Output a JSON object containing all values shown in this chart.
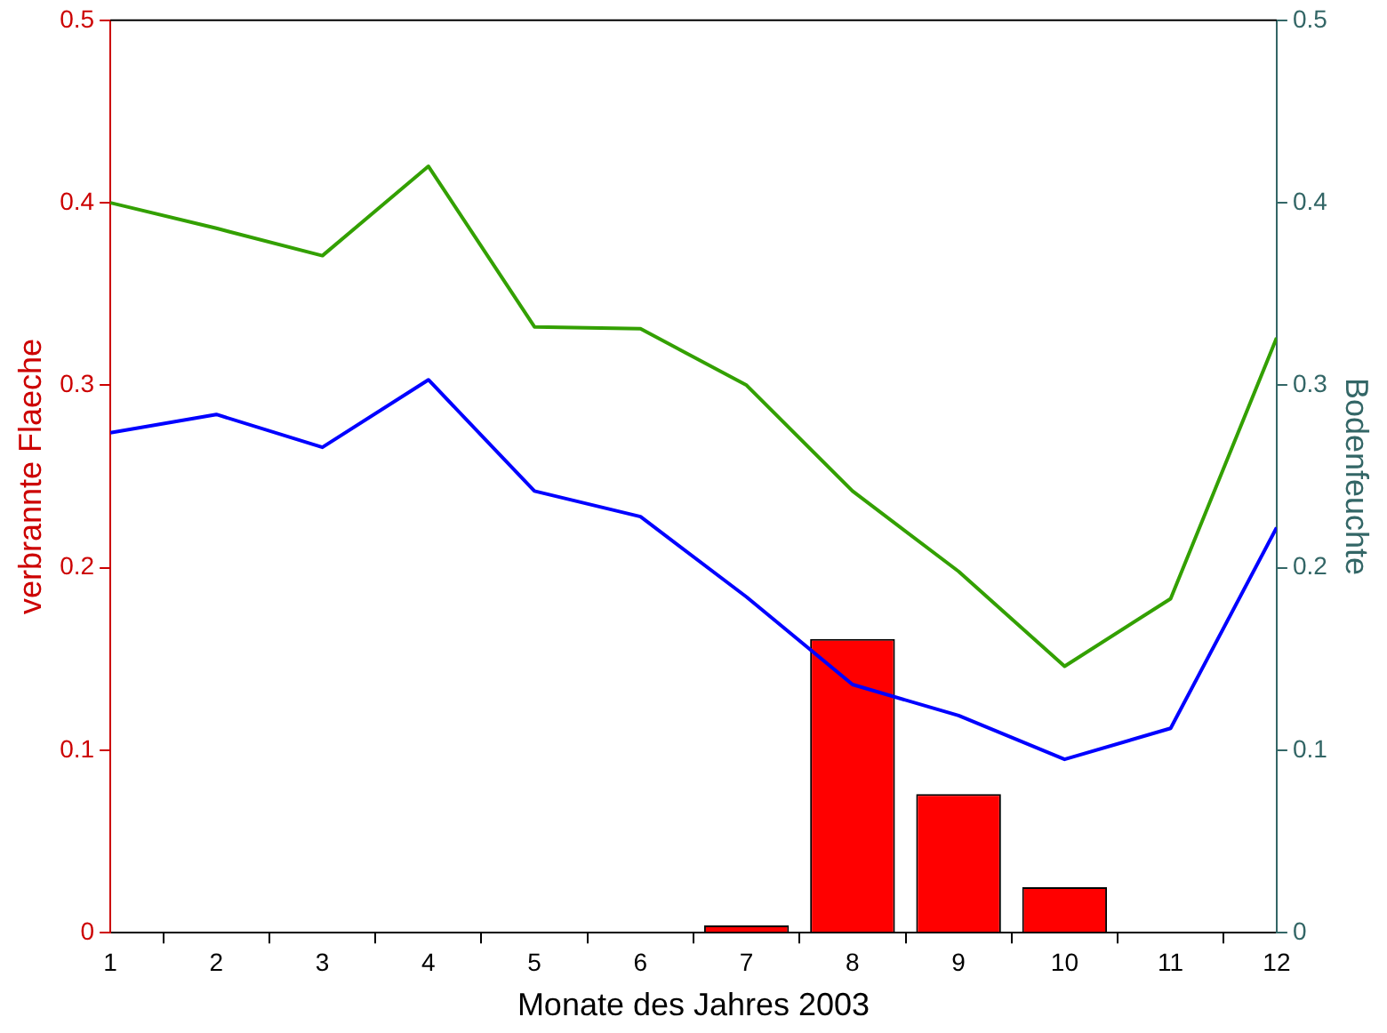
{
  "chart_data": {
    "type": "bar",
    "xlabel": "Monate des Jahres 2003",
    "ylabel": "verbrannte Flaeche",
    "y2label": "Bodenfeuchte",
    "x": [
      1,
      2,
      3,
      4,
      5,
      6,
      7,
      8,
      9,
      10,
      11,
      12
    ],
    "series": [
      {
        "color": "#ff0000",
        "values": [
          0,
          0,
          0,
          0,
          0,
          0,
          0.004,
          0.161,
          0.076,
          0.025,
          0,
          0
        ]
      },
      {
        "type": "line",
        "axis": "y2",
        "color": "#33a000",
        "values": [
          0.4,
          0.386,
          0.371,
          0.42,
          0.332,
          0.331,
          0.3,
          0.242,
          0.198,
          0.146,
          0.183,
          0.326
        ]
      },
      {
        "type": "line",
        "axis": "y2",
        "color": "#0000ff",
        "values": [
          0.274,
          0.284,
          0.266,
          0.303,
          0.242,
          0.228,
          0.184,
          0.136,
          0.119,
          0.095,
          0.112,
          0.222
        ]
      }
    ],
    "xlim": [
      1,
      12
    ],
    "xticks": [
      1,
      2,
      3,
      4,
      5,
      6,
      7,
      8,
      9,
      10,
      11,
      12
    ],
    "ylim": [
      0,
      0.5
    ],
    "yticks": [
      0,
      0.1,
      0.2,
      0.3,
      0.4,
      0.5
    ],
    "y2lim": [
      0,
      0.5
    ],
    "y2ticks": [
      0,
      0.1,
      0.2,
      0.3,
      0.4,
      0.5
    ],
    "grid": false,
    "legend": false
  }
}
